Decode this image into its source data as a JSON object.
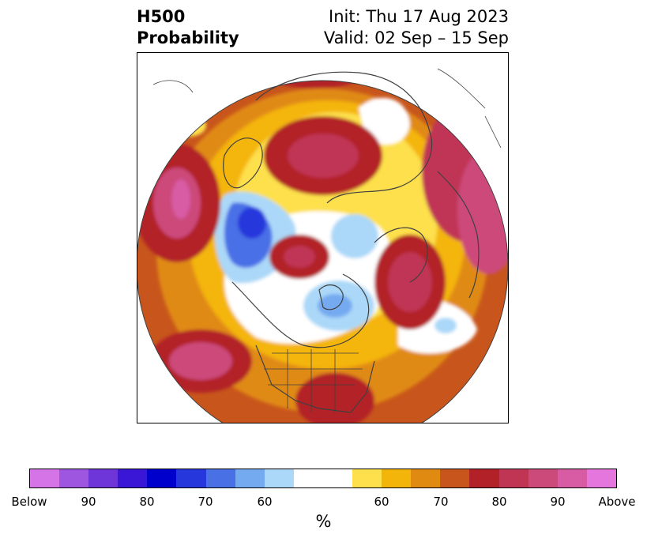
{
  "title": {
    "left_line1": "H500",
    "left_line2": "Probability",
    "right_line1": "Init: Thu 17 Aug 2023",
    "right_line2": "Valid: 02 Sep – 15 Sep"
  },
  "colorbar": {
    "colors": [
      "#d474e6",
      "#9e56e0",
      "#6e36d9",
      "#3a17d6",
      "#0000cc",
      "#2638dc",
      "#4a70e6",
      "#74aaf0",
      "#abd8f8",
      "#ffffff",
      "#ffffff",
      "#fde04b",
      "#f4b50b",
      "#e08a12",
      "#c8561c",
      "#b22028",
      "#c03454",
      "#cc4a7a",
      "#d85ca4",
      "#e476de"
    ],
    "labels": [
      "Below",
      "90",
      "80",
      "70",
      "60",
      "60",
      "70",
      "80",
      "90",
      "Above"
    ],
    "unit": "%"
  }
}
